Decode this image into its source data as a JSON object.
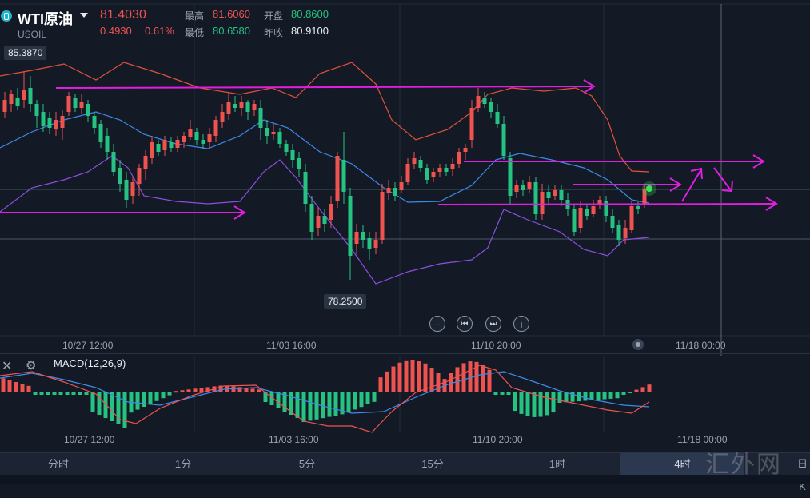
{
  "header": {
    "symbol": "WTI原油",
    "code": "USOIL",
    "price": "81.4030",
    "change": "0.4930",
    "change_pct": "0.61%",
    "high_label": "最高",
    "high": "81.6060",
    "open_label": "开盘",
    "open": "80.8600",
    "low_label": "最低",
    "low": "80.6580",
    "prev_close_label": "昨收",
    "prev_close": "80.9100"
  },
  "chart": {
    "max_label": "85.3870",
    "min_label": "78.2500",
    "x_ticks": [
      "10/27 12:00",
      "11/03 16:00",
      "11/10 20:00",
      "11/18 00:00"
    ],
    "macd_x_ticks": [
      "10/27 12:00",
      "11/03 16:00",
      "11/10 20:00",
      "11/18 00:00"
    ],
    "macd_title": "MACD(12,26,9)",
    "edge_label": "日K"
  },
  "controls": {
    "zoom_out_icon": "−",
    "prev_icon": "⏮",
    "next_icon": "⏭",
    "zoom_in_icon": "+"
  },
  "tabs": [
    {
      "label": "分时",
      "active": false
    },
    {
      "label": "1分",
      "active": false
    },
    {
      "label": "5分",
      "active": false
    },
    {
      "label": "15分",
      "active": false
    },
    {
      "label": "1时",
      "active": false
    },
    {
      "label": "4时",
      "active": true
    }
  ],
  "watermark": "汇外网",
  "colors": {
    "up": "#ef5350",
    "down": "#26c281",
    "annotation": "#e01ee0",
    "bb_upper": "#e0523a",
    "bb_mid": "#3d8be8",
    "bb_lower": "#8b4fe0"
  }
}
